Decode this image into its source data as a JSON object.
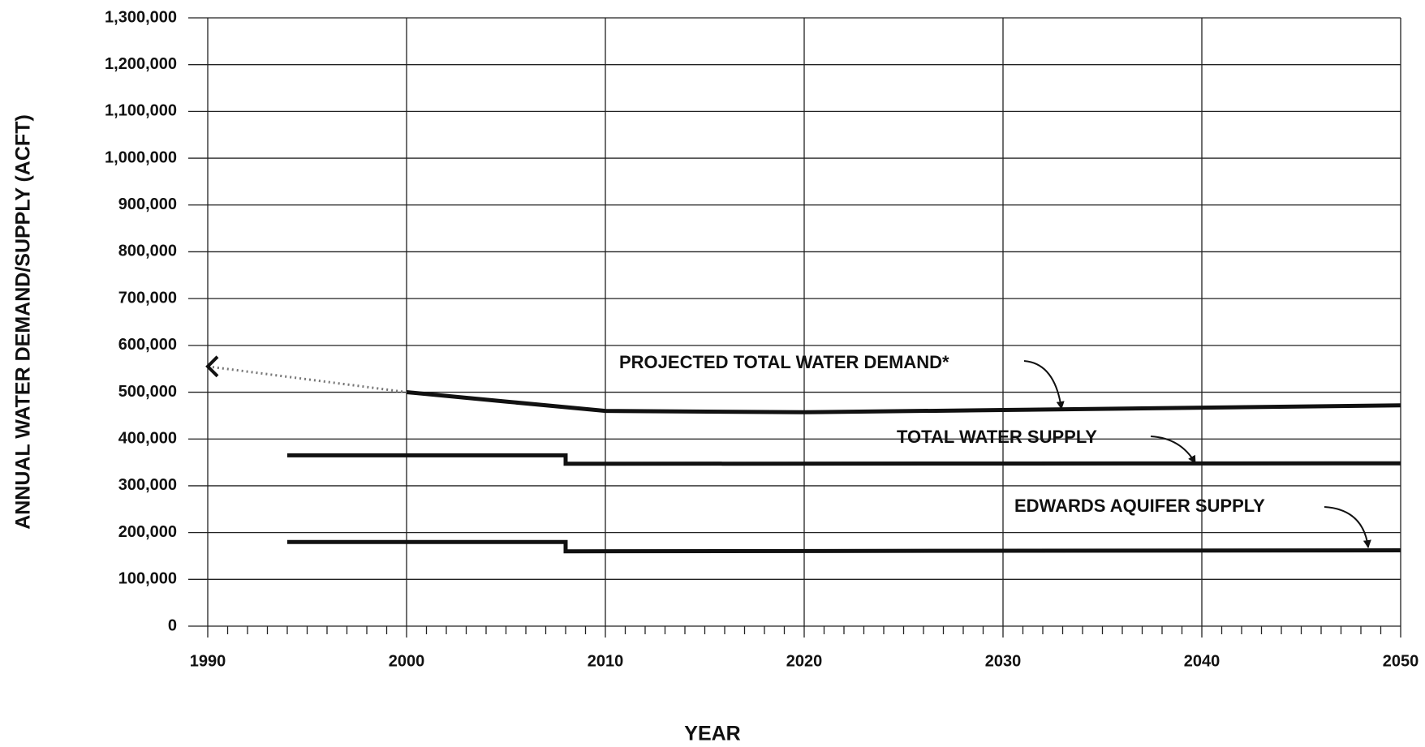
{
  "chart_data": {
    "type": "line",
    "xlabel": "YEAR",
    "ylabel": "ANNUAL WATER DEMAND/SUPPLY (ACFT)",
    "xlim": [
      1990,
      2050
    ],
    "xticks": [
      1990,
      2000,
      2010,
      2020,
      2030,
      2040,
      2050
    ],
    "ylim": [
      0,
      1300000
    ],
    "yticks": [
      0,
      {
        "value": 100000,
        "label": "100,000"
      },
      {
        "value": 200000,
        "label": "200,000"
      },
      {
        "value": 300000,
        "label": "300,000"
      },
      {
        "value": 400000,
        "label": "400,000"
      },
      {
        "value": 500000,
        "label": "500,000"
      },
      {
        "value": 600000,
        "label": "600,000"
      },
      {
        "value": 700000,
        "label": "700,000"
      },
      {
        "value": 800000,
        "label": "800,000"
      },
      {
        "value": 900000,
        "label": "900,000"
      },
      {
        "value": 1000000,
        "label": "1,000,000"
      },
      {
        "value": 1100000,
        "label": "1,100,000"
      },
      {
        "value": 1200000,
        "label": "1,200,000"
      },
      {
        "value": 1300000,
        "label": "1,300,000"
      }
    ],
    "grid": true,
    "series": [
      {
        "color": "#777777",
        "dashed": true,
        "x": [
          1990,
          2000
        ],
        "values": [
          555000,
          500000
        ]
      },
      {
        "name": "PROJECTED TOTAL WATER DEMAND*",
        "color": "#111111",
        "x": [
          2000,
          2005,
          2010,
          2020,
          2030,
          2040,
          2050
        ],
        "values": [
          500000,
          480000,
          460000,
          457000,
          462000,
          467000,
          472000
        ]
      },
      {
        "name": "TOTAL WATER SUPPLY",
        "color": "#111111",
        "x": [
          1994,
          2008,
          2008,
          2050
        ],
        "values": [
          365000,
          365000,
          347000,
          348000
        ]
      },
      {
        "name": "EDWARDS AQUIFER SUPPLY",
        "color": "#111111",
        "x": [
          1994,
          2008,
          2008,
          2050
        ],
        "values": [
          180000,
          180000,
          160000,
          162000
        ]
      }
    ]
  }
}
